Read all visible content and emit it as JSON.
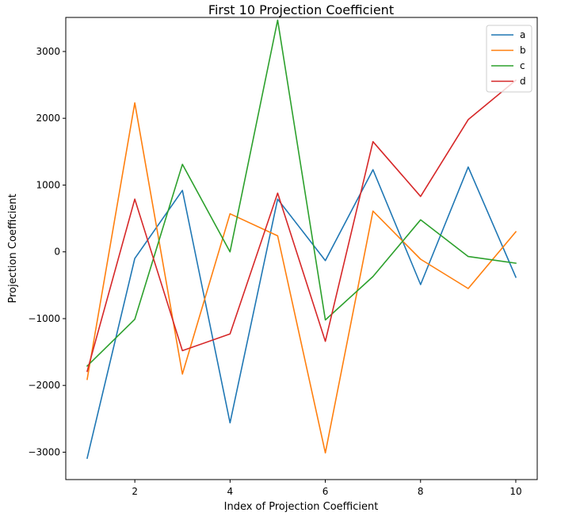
{
  "chart_data": {
    "type": "line",
    "title": "First 10 Projection Coefficient",
    "xlabel": "Index of Projection Coefficient",
    "ylabel": "Projection Coefficient",
    "x": [
      1,
      2,
      3,
      4,
      5,
      6,
      7,
      8,
      9,
      10
    ],
    "xlim": [
      0.55,
      10.45
    ],
    "ylim": [
      -3410,
      3510
    ],
    "xticks": [
      2,
      4,
      6,
      8,
      10
    ],
    "yticks": [
      -3000,
      -2000,
      -1000,
      0,
      1000,
      2000,
      3000
    ],
    "ytick_labels": [
      "−3000",
      "−2000",
      "−1000",
      "0",
      "1000",
      "2000",
      "3000"
    ],
    "grid": false,
    "legend_position": "top-right",
    "series": [
      {
        "name": "a",
        "color": "#1f77b4",
        "values": [
          -3090,
          -100,
          920,
          -2560,
          790,
          -130,
          1230,
          -490,
          1270,
          -380
        ]
      },
      {
        "name": "b",
        "color": "#ff7f0e",
        "values": [
          -1910,
          2230,
          -1830,
          570,
          240,
          -3010,
          610,
          -110,
          -550,
          300
        ]
      },
      {
        "name": "c",
        "color": "#2ca02c",
        "values": [
          -1710,
          -1010,
          1310,
          0,
          3470,
          -1020,
          -370,
          480,
          -70,
          -170
        ]
      },
      {
        "name": "d",
        "color": "#d62728",
        "values": [
          -1790,
          790,
          -1480,
          -1230,
          880,
          -1340,
          1650,
          830,
          1980,
          2570
        ]
      }
    ]
  }
}
